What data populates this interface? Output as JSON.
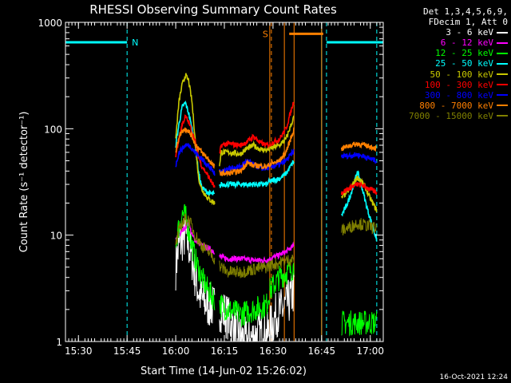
{
  "chart_data": {
    "type": "line",
    "title": "RHESSI Observing Summary Count Rates",
    "xlabel": "Start Time (14-Jun-02 15:26:02)",
    "ylabel": "Count Rate (s⁻¹ detector⁻¹)",
    "ylog": true,
    "ylim": [
      1,
      1000
    ],
    "xlim_minutes_after_1526": [
      0,
      98
    ],
    "x_ticks": [
      {
        "t": 4,
        "label": "15:30"
      },
      {
        "t": 19,
        "label": "15:45"
      },
      {
        "t": 34,
        "label": "16:00"
      },
      {
        "t": 49,
        "label": "16:15"
      },
      {
        "t": 64,
        "label": "16:30"
      },
      {
        "t": 79,
        "label": "16:45"
      },
      {
        "t": 94,
        "label": "17:00"
      }
    ],
    "y_ticks": [
      {
        "v": 1,
        "label": "1"
      },
      {
        "v": 10,
        "label": "10"
      },
      {
        "v": 100,
        "label": "100"
      },
      {
        "v": 1000,
        "label": "1000"
      }
    ],
    "legend_header": [
      "Det 1,3,4,5,6,9,",
      "FDecim 1, Att 0"
    ],
    "markers": {
      "night": {
        "label": "N",
        "color": "#00ffff"
      },
      "saa": {
        "label": "S",
        "color": "#ff8000"
      }
    },
    "segments": [
      [
        34,
        46
      ],
      [
        47.5,
        63
      ],
      [
        63,
        70.5
      ],
      [
        85,
        96
      ]
    ],
    "series": [
      {
        "name": "3 - 6 keV",
        "color": "#ffffff",
        "pts": [
          [
            34,
            5
          ],
          [
            35,
            8
          ],
          [
            36,
            9
          ],
          [
            37,
            10
          ],
          [
            38,
            8
          ],
          [
            39,
            6
          ],
          [
            40,
            4
          ],
          [
            41,
            3
          ],
          [
            42,
            2.5
          ],
          [
            43,
            2.3
          ],
          [
            44,
            2.2
          ],
          [
            46,
            2.1
          ],
          [
            48,
            2
          ],
          [
            50,
            1.7
          ],
          [
            52,
            1.3
          ],
          [
            54,
            1.1
          ],
          [
            56,
            1
          ],
          [
            58,
            1.1
          ],
          [
            60,
            1.2
          ],
          [
            62,
            1.1
          ],
          [
            63,
            1.3
          ],
          [
            65,
            1.8
          ],
          [
            67,
            2
          ],
          [
            69,
            2.4
          ],
          [
            70.5,
            3
          ]
        ]
      },
      {
        "name": "6 - 12 keV",
        "color": "#ff00ff",
        "pts": [
          [
            34,
            9
          ],
          [
            35,
            10
          ],
          [
            36,
            11
          ],
          [
            37,
            12
          ],
          [
            38,
            13
          ],
          [
            39,
            10
          ],
          [
            40,
            9
          ],
          [
            42,
            8
          ],
          [
            44,
            7.5
          ],
          [
            46,
            7
          ],
          [
            48,
            6.2
          ],
          [
            50,
            6
          ],
          [
            54,
            6
          ],
          [
            58,
            5.8
          ],
          [
            62,
            5.8
          ],
          [
            63,
            6
          ],
          [
            66,
            6.5
          ],
          [
            68,
            7
          ],
          [
            70.5,
            8
          ]
        ]
      },
      {
        "name": "12 - 25 keV",
        "color": "#00ff00",
        "pts": [
          [
            34,
            9
          ],
          [
            35,
            12
          ],
          [
            36,
            16
          ],
          [
            37,
            15
          ],
          [
            38,
            11
          ],
          [
            40,
            6
          ],
          [
            42,
            4
          ],
          [
            44,
            3
          ],
          [
            46,
            2.5
          ],
          [
            48,
            2.2
          ],
          [
            50,
            2
          ],
          [
            54,
            1.8
          ],
          [
            58,
            2
          ],
          [
            62,
            2.2
          ],
          [
            63,
            3
          ],
          [
            66,
            4
          ],
          [
            70.5,
            5
          ],
          [
            85,
            1.5
          ],
          [
            90,
            1.5
          ],
          [
            96,
            1.5
          ]
        ]
      },
      {
        "name": "25 - 50 keV",
        "color": "#00ffff",
        "pts": [
          [
            34,
            70
          ],
          [
            35,
            110
          ],
          [
            36,
            160
          ],
          [
            37,
            175
          ],
          [
            38,
            140
          ],
          [
            39,
            100
          ],
          [
            40,
            70
          ],
          [
            41,
            40
          ],
          [
            42,
            28
          ],
          [
            44,
            25
          ],
          [
            46,
            24
          ],
          [
            48,
            30
          ],
          [
            50,
            30
          ],
          [
            54,
            30
          ],
          [
            58,
            30
          ],
          [
            62,
            30
          ],
          [
            63,
            32
          ],
          [
            66,
            34
          ],
          [
            68,
            38
          ],
          [
            70.5,
            50
          ],
          [
            85,
            15
          ],
          [
            87,
            20
          ],
          [
            89,
            30
          ],
          [
            90,
            40
          ],
          [
            91,
            32
          ],
          [
            93,
            18
          ],
          [
            96,
            9
          ]
        ]
      },
      {
        "name": "50 - 100 keV",
        "color": "#c8c800",
        "pts": [
          [
            34,
            80
          ],
          [
            35,
            180
          ],
          [
            36,
            260
          ],
          [
            37,
            320
          ],
          [
            38,
            280
          ],
          [
            39,
            180
          ],
          [
            40,
            80
          ],
          [
            41,
            35
          ],
          [
            42,
            27
          ],
          [
            44,
            22
          ],
          [
            46,
            20
          ],
          [
            48,
            60
          ],
          [
            50,
            60
          ],
          [
            54,
            58
          ],
          [
            56,
            65
          ],
          [
            58,
            70
          ],
          [
            60,
            64
          ],
          [
            62,
            63
          ],
          [
            63,
            65
          ],
          [
            66,
            70
          ],
          [
            68,
            80
          ],
          [
            70.5,
            130
          ],
          [
            85,
            22
          ],
          [
            88,
            28
          ],
          [
            90,
            35
          ],
          [
            92,
            30
          ],
          [
            94,
            22
          ],
          [
            96,
            17
          ]
        ]
      },
      {
        "name": "100 - 300 keV",
        "color": "#ff0000",
        "pts": [
          [
            34,
            55
          ],
          [
            35,
            80
          ],
          [
            36,
            110
          ],
          [
            37,
            130
          ],
          [
            38,
            115
          ],
          [
            39,
            95
          ],
          [
            40,
            75
          ],
          [
            41,
            55
          ],
          [
            42,
            45
          ],
          [
            44,
            36
          ],
          [
            46,
            28
          ],
          [
            48,
            70
          ],
          [
            50,
            72
          ],
          [
            54,
            70
          ],
          [
            56,
            75
          ],
          [
            58,
            85
          ],
          [
            60,
            74
          ],
          [
            62,
            70
          ],
          [
            63,
            72
          ],
          [
            66,
            80
          ],
          [
            68,
            100
          ],
          [
            70.5,
            185
          ],
          [
            85,
            25
          ],
          [
            88,
            28
          ],
          [
            90,
            30
          ],
          [
            92,
            29
          ],
          [
            94,
            27
          ],
          [
            96,
            25
          ]
        ]
      },
      {
        "name": "300 - 800 keV",
        "color": "#0000ff",
        "pts": [
          [
            34,
            45
          ],
          [
            35,
            60
          ],
          [
            36,
            65
          ],
          [
            37,
            70
          ],
          [
            38,
            70
          ],
          [
            39,
            66
          ],
          [
            40,
            60
          ],
          [
            42,
            52
          ],
          [
            44,
            45
          ],
          [
            46,
            38
          ],
          [
            48,
            40
          ],
          [
            50,
            42
          ],
          [
            54,
            44
          ],
          [
            56,
            50
          ],
          [
            58,
            46
          ],
          [
            60,
            43
          ],
          [
            62,
            42
          ],
          [
            63,
            44
          ],
          [
            66,
            46
          ],
          [
            68,
            50
          ],
          [
            70.5,
            62
          ],
          [
            85,
            55
          ],
          [
            88,
            56
          ],
          [
            90,
            57
          ],
          [
            92,
            55
          ],
          [
            94,
            52
          ],
          [
            96,
            50
          ]
        ]
      },
      {
        "name": "800 - 7000 keV",
        "color": "#ff8000",
        "pts": [
          [
            34,
            60
          ],
          [
            35,
            85
          ],
          [
            36,
            95
          ],
          [
            37,
            100
          ],
          [
            38,
            95
          ],
          [
            39,
            85
          ],
          [
            40,
            72
          ],
          [
            42,
            60
          ],
          [
            44,
            52
          ],
          [
            46,
            43
          ],
          [
            48,
            38
          ],
          [
            50,
            38
          ],
          [
            54,
            40
          ],
          [
            56,
            48
          ],
          [
            58,
            45
          ],
          [
            60,
            45
          ],
          [
            62,
            44
          ],
          [
            63,
            46
          ],
          [
            66,
            50
          ],
          [
            68,
            60
          ],
          [
            70.5,
            100
          ],
          [
            85,
            65
          ],
          [
            88,
            70
          ],
          [
            90,
            72
          ],
          [
            92,
            70
          ],
          [
            94,
            68
          ],
          [
            96,
            65
          ]
        ]
      },
      {
        "name": "7000 - 15000 keV",
        "color": "#808000",
        "pts": [
          [
            34,
            8
          ],
          [
            35,
            11
          ],
          [
            36,
            13
          ],
          [
            37,
            14
          ],
          [
            38,
            14
          ],
          [
            39,
            12
          ],
          [
            40,
            10
          ],
          [
            42,
            8
          ],
          [
            44,
            7
          ],
          [
            46,
            6
          ],
          [
            48,
            5
          ],
          [
            50,
            4.5
          ],
          [
            54,
            4.5
          ],
          [
            58,
            4.8
          ],
          [
            62,
            5
          ],
          [
            63,
            5.2
          ],
          [
            66,
            5.5
          ],
          [
            70.5,
            6
          ],
          [
            85,
            11
          ],
          [
            88,
            12
          ],
          [
            90,
            13
          ],
          [
            92,
            12.5
          ],
          [
            94,
            12
          ],
          [
            96,
            11.5
          ]
        ]
      }
    ],
    "stamp": "16-Oct-2021 12:24"
  }
}
